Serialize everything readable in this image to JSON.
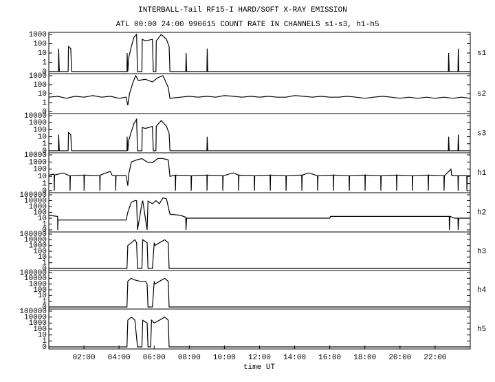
{
  "chart_data": [
    {
      "type": "line",
      "title": "INTERBALL-Tail RF15-I HARD/SOFT X-RAY EMISSION",
      "subtitle": "ATL 00:00 24:00 990615  COUNT RATE IN CHANNELS s1-s3, h1-h5",
      "name": "s1",
      "yscale": "log",
      "xlim": [
        0,
        24
      ],
      "ylim": [
        0,
        1000
      ],
      "yticks": [
        0,
        1,
        10,
        100,
        1000
      ],
      "color": "#000000",
      "x": [
        0,
        0.55,
        0.56,
        0.6,
        1.1,
        1.12,
        1.25,
        1.3,
        4.45,
        4.46,
        4.5,
        4.55,
        4.7,
        4.85,
        5.0,
        5.05,
        5.3,
        5.32,
        5.5,
        5.9,
        5.95,
        6.1,
        6.12,
        6.4,
        6.7,
        6.85,
        6.9,
        7.8,
        7.82,
        7.85,
        9.0,
        9.02,
        9.05,
        22.75,
        22.77,
        22.8,
        23.3,
        23.32,
        23.35,
        24
      ],
      "values": [
        0,
        0,
        30,
        0,
        0,
        50,
        30,
        0,
        0,
        10,
        0,
        3,
        50,
        500,
        1000,
        0,
        0,
        300,
        200,
        300,
        0,
        0,
        200,
        1000,
        300,
        50,
        0,
        0,
        10,
        0,
        0,
        30,
        0,
        0,
        10,
        0,
        0,
        30,
        0,
        0
      ]
    },
    {
      "type": "line",
      "name": "s2",
      "yscale": "log",
      "xlim": [
        0,
        24
      ],
      "ylim": [
        0,
        1000
      ],
      "yticks": [
        0,
        1,
        10,
        100,
        1000
      ],
      "color": "#000000",
      "x": [
        0,
        0.5,
        1,
        1.5,
        2,
        2.5,
        3,
        3.5,
        4,
        4.4,
        4.5,
        4.6,
        4.8,
        4.95,
        5.1,
        5.5,
        5.9,
        6.2,
        6.5,
        6.8,
        6.9,
        7.5,
        8,
        8.5,
        9,
        9.5,
        10,
        10.5,
        11,
        11.5,
        12,
        12.5,
        13,
        13.5,
        14,
        14.5,
        15,
        15.5,
        16,
        16.5,
        17,
        17.5,
        18,
        18.5,
        19,
        19.5,
        20,
        20.5,
        21,
        21.5,
        22,
        22.5,
        23,
        23.5,
        24
      ],
      "values": [
        4,
        5,
        3,
        5,
        4,
        6,
        4,
        5,
        3,
        4,
        0.5,
        10,
        200,
        1000,
        300,
        400,
        200,
        600,
        1000,
        50,
        3,
        4,
        5,
        4,
        5,
        4,
        6,
        5,
        4,
        5,
        4,
        5,
        4,
        4,
        6,
        5,
        4,
        5,
        4,
        4,
        5,
        4,
        3,
        4,
        5,
        4,
        3,
        4,
        3,
        4,
        3,
        4,
        3,
        4,
        3
      ]
    },
    {
      "type": "line",
      "name": "s3",
      "yscale": "log",
      "xlim": [
        0,
        24
      ],
      "ylim": [
        0,
        10000
      ],
      "yticks": [
        0,
        1,
        10,
        100,
        1000,
        10000
      ],
      "color": "#000000",
      "x": [
        0,
        0.55,
        0.56,
        0.6,
        1.1,
        1.12,
        1.25,
        1.3,
        4.45,
        4.46,
        4.5,
        4.55,
        4.7,
        4.85,
        5.0,
        5.05,
        5.3,
        5.32,
        5.5,
        5.9,
        5.95,
        6.1,
        6.12,
        6.4,
        6.7,
        6.85,
        6.9,
        9.0,
        9.02,
        9.05,
        22.75,
        22.77,
        22.8,
        23.3,
        23.32,
        23.35,
        24
      ],
      "values": [
        0,
        0,
        20,
        0,
        0,
        40,
        20,
        0,
        0,
        10,
        0,
        3,
        50,
        800,
        3000,
        0,
        0,
        200,
        150,
        300,
        0,
        0,
        300,
        2000,
        300,
        30,
        0,
        0,
        10,
        0,
        0,
        10,
        0,
        0,
        20,
        0,
        0
      ]
    },
    {
      "type": "line",
      "name": "h1",
      "yscale": "log",
      "xlim": [
        0,
        24
      ],
      "ylim": [
        0,
        10000
      ],
      "yticks": [
        0,
        1,
        10,
        100,
        1000,
        10000
      ],
      "color": "#000000",
      "x": [
        0,
        0.3,
        0.31,
        0.33,
        0.8,
        1.2,
        1.21,
        1.23,
        2.0,
        2.01,
        2.03,
        2.9,
        2.91,
        2.93,
        3.5,
        3.6,
        3.8,
        3.81,
        3.83,
        4.4,
        4.5,
        4.55,
        4.7,
        5.0,
        5.3,
        5.6,
        5.9,
        6.2,
        6.5,
        6.8,
        6.9,
        7.2,
        7.21,
        7.23,
        8.1,
        8.11,
        8.13,
        9.0,
        9.01,
        9.03,
        9.9,
        9.91,
        9.93,
        10.5,
        10.8,
        10.81,
        10.83,
        11.7,
        11.71,
        11.73,
        12.6,
        12.61,
        12.63,
        13.5,
        13.51,
        13.53,
        14.4,
        14.41,
        14.43,
        14.8,
        15.3,
        15.31,
        15.33,
        16.2,
        16.21,
        16.23,
        17.1,
        17.11,
        17.13,
        18.0,
        18.01,
        18.03,
        18.9,
        18.91,
        18.93,
        19.8,
        19.81,
        19.83,
        20.7,
        20.71,
        20.73,
        21.6,
        21.61,
        21.63,
        22.5,
        22.51,
        22.53,
        22.9,
        22.95,
        23.3,
        23.31,
        23.33,
        23.8,
        23.81,
        23.83,
        24
      ],
      "values": [
        15,
        20,
        0,
        15,
        30,
        12,
        0,
        12,
        15,
        0,
        15,
        12,
        0,
        15,
        50,
        15,
        12,
        0,
        12,
        12,
        0.5,
        20,
        1000,
        2000,
        3000,
        1000,
        800,
        3000,
        3000,
        2000,
        10,
        15,
        0,
        15,
        12,
        0,
        12,
        15,
        0,
        15,
        12,
        0,
        12,
        30,
        15,
        0,
        15,
        12,
        0,
        12,
        15,
        0,
        15,
        12,
        0,
        12,
        15,
        0,
        15,
        30,
        12,
        0,
        12,
        15,
        0,
        15,
        12,
        0,
        12,
        15,
        0,
        15,
        12,
        0,
        12,
        15,
        0,
        15,
        12,
        0,
        12,
        15,
        0,
        15,
        12,
        0,
        12,
        100,
        12,
        12,
        0,
        12,
        12,
        0,
        12,
        12
      ]
    },
    {
      "type": "line",
      "name": "h2",
      "yscale": "log",
      "xlim": [
        0,
        24
      ],
      "ylim": [
        0,
        100000
      ],
      "yticks": [
        0,
        1,
        10,
        100,
        1000,
        10000,
        100000
      ],
      "color": "#000000",
      "x": [
        0,
        0.5,
        0.51,
        0.52,
        4.4,
        4.5,
        4.7,
        4.9,
        5.0,
        5.05,
        5.3,
        5.35,
        5.6,
        5.65,
        5.9,
        6.1,
        6.3,
        6.5,
        6.7,
        6.9,
        7.5,
        7.8,
        7.81,
        7.85,
        16,
        16.05,
        22.8,
        22.81,
        22.85,
        23.1,
        23.3,
        23.31,
        23.35,
        24
      ],
      "values": [
        30,
        20,
        0,
        5,
        5,
        100,
        5000,
        10000,
        10000,
        0,
        3000,
        10000,
        0,
        8000,
        3000,
        10000,
        3000,
        30000,
        20000,
        50,
        30,
        15,
        0,
        10,
        10,
        20,
        20,
        0,
        20,
        10,
        10,
        0,
        10,
        10
      ]
    },
    {
      "type": "line",
      "name": "h3",
      "yscale": "log",
      "xlim": [
        0,
        24
      ],
      "ylim": [
        0,
        100000
      ],
      "yticks": [
        0,
        1,
        10,
        100,
        1000,
        10000,
        100000
      ],
      "color": "#000000",
      "x": [
        0,
        4.45,
        4.5,
        4.7,
        4.9,
        5.0,
        5.05,
        5.3,
        5.35,
        5.6,
        5.65,
        5.9,
        6.0,
        6.05,
        6.3,
        6.6,
        6.8,
        6.85,
        24
      ],
      "values": [
        0,
        0,
        1000,
        3000,
        10000,
        3000,
        0,
        0,
        10000,
        3000,
        0,
        0,
        3000,
        1000,
        3000,
        10000,
        3000,
        0,
        0
      ]
    },
    {
      "type": "line",
      "name": "h4",
      "yscale": "log",
      "xlim": [
        0,
        24
      ],
      "ylim": [
        0,
        100000
      ],
      "yticks": [
        0,
        1,
        10,
        100,
        1000,
        10000,
        100000
      ],
      "color": "#000000",
      "x": [
        0,
        4.45,
        4.5,
        4.7,
        4.9,
        5.2,
        5.5,
        5.6,
        5.65,
        5.9,
        6.0,
        6.05,
        6.3,
        6.6,
        6.8,
        6.85,
        24
      ],
      "values": [
        0,
        0,
        3000,
        10000,
        5000,
        3000,
        3000,
        1000,
        0,
        0,
        3000,
        1000,
        3000,
        10000,
        3000,
        0,
        0
      ]
    },
    {
      "type": "line",
      "name": "h5",
      "yscale": "log",
      "xlim": [
        0,
        24
      ],
      "ylim": [
        0,
        100000
      ],
      "yticks": [
        0,
        1,
        10,
        100,
        1000,
        10000,
        100000
      ],
      "color": "#000000",
      "xlabel": "time UT",
      "xticks": [
        {
          "value": 2,
          "label": "02:00"
        },
        {
          "value": 4,
          "label": "04:00"
        },
        {
          "value": 6,
          "label": "06:00"
        },
        {
          "value": 8,
          "label": "08:00"
        },
        {
          "value": 10,
          "label": "10:00"
        },
        {
          "value": 12,
          "label": "12:00"
        },
        {
          "value": 14,
          "label": "14:00"
        },
        {
          "value": 16,
          "label": "16:00"
        },
        {
          "value": 18,
          "label": "18:00"
        },
        {
          "value": 20,
          "label": "20:00"
        },
        {
          "value": 22,
          "label": "22:00"
        }
      ],
      "x": [
        0,
        4.45,
        4.5,
        4.7,
        4.9,
        5.05,
        5.1,
        5.3,
        5.35,
        5.6,
        5.65,
        5.8,
        5.85,
        6.0,
        6.3,
        6.6,
        6.8,
        6.85,
        24
      ],
      "values": [
        0,
        0,
        3000,
        10000,
        3000,
        0,
        0,
        0,
        3000,
        1000,
        0,
        0,
        3000,
        1000,
        3000,
        10000,
        3000,
        0,
        0
      ]
    }
  ]
}
